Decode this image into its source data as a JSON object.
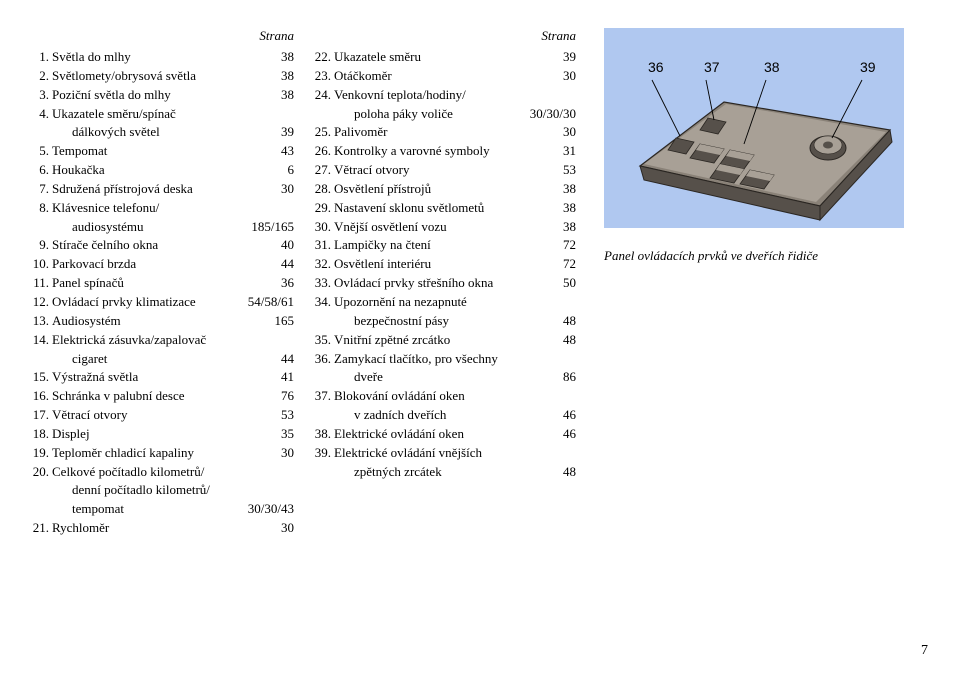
{
  "header": {
    "page_label": "Strana"
  },
  "col1": [
    {
      "n": "1.",
      "label": "Světla do mlhy",
      "val": "38"
    },
    {
      "n": "2.",
      "label": "Světlomety/obrysová světla",
      "val": "38"
    },
    {
      "n": "3.",
      "label": "Poziční světla do mlhy",
      "val": "38"
    },
    {
      "n": "4.",
      "label": "Ukazatele směru/spínač",
      "val": ""
    },
    {
      "n": "",
      "label": "dálkových světel",
      "indent": true,
      "val": "39"
    },
    {
      "n": "5.",
      "label": "Tempomat",
      "val": "43"
    },
    {
      "n": "6.",
      "label": "Houkačka",
      "val": "6"
    },
    {
      "n": "7.",
      "label": "Sdružená přístrojová deska",
      "val": "30"
    },
    {
      "n": "8.",
      "label": "Klávesnice telefonu/",
      "val": ""
    },
    {
      "n": "",
      "label": "audiosystému",
      "indent": true,
      "val": "185/165"
    },
    {
      "n": "9.",
      "label": "Stírače čelního okna",
      "val": "40"
    },
    {
      "n": "10.",
      "label": "Parkovací brzda",
      "val": "44"
    },
    {
      "n": "11.",
      "label": "Panel spínačů",
      "val": "36"
    },
    {
      "n": "12.",
      "label": "Ovládací prvky klimatizace",
      "val": "54/58/61"
    },
    {
      "n": "13.",
      "label": "Audiosystém",
      "val": "165"
    },
    {
      "n": "14.",
      "label": "Elektrická zásuvka/zapalovač",
      "val": ""
    },
    {
      "n": "",
      "label": "cigaret",
      "indent": true,
      "val": "44"
    },
    {
      "n": "15.",
      "label": "Výstražná světla",
      "val": "41"
    },
    {
      "n": "16.",
      "label": "Schránka v palubní desce",
      "val": "76"
    },
    {
      "n": "17.",
      "label": "Větrací otvory",
      "val": "53"
    },
    {
      "n": "18.",
      "label": "Displej",
      "val": "35"
    },
    {
      "n": "19.",
      "label": "Teploměr chladicí kapaliny",
      "val": "30"
    },
    {
      "n": "20.",
      "label": "Celkové počítadlo kilometrů/",
      "val": ""
    },
    {
      "n": "",
      "label": "denní počítadlo kilometrů/",
      "indent": true,
      "val": ""
    },
    {
      "n": "",
      "label": "tempomat",
      "indent": true,
      "val": "30/30/43"
    },
    {
      "n": "21.",
      "label": "Rychloměr",
      "val": "30"
    }
  ],
  "col2": [
    {
      "n": "22.",
      "label": "Ukazatele směru",
      "val": "39"
    },
    {
      "n": "23.",
      "label": "Otáčkoměr",
      "val": "30"
    },
    {
      "n": "24.",
      "label": "Venkovní teplota/hodiny/",
      "val": ""
    },
    {
      "n": "",
      "label": "poloha páky voliče",
      "indent": true,
      "val": "30/30/30"
    },
    {
      "n": "25.",
      "label": "Palivoměr",
      "val": "30"
    },
    {
      "n": "26.",
      "label": "Kontrolky a varovné symboly",
      "val": "31"
    },
    {
      "n": "27.",
      "label": "Větrací otvory",
      "val": "53"
    },
    {
      "n": "28.",
      "label": "Osvětlení přístrojů",
      "val": "38"
    },
    {
      "n": "29.",
      "label": "Nastavení sklonu světlometů",
      "val": "38"
    },
    {
      "n": "30.",
      "label": "Vnější osvětlení vozu",
      "val": "38"
    },
    {
      "n": "31.",
      "label": "Lampičky na čtení",
      "val": "72"
    },
    {
      "n": "32.",
      "label": "Osvětlení interiéru",
      "val": "72"
    },
    {
      "n": "33.",
      "label": "Ovládací prvky střešního okna",
      "val": "50"
    },
    {
      "n": "34.",
      "label": "Upozornění na nezapnuté",
      "val": ""
    },
    {
      "n": "",
      "label": "bezpečnostní pásy",
      "indent": true,
      "val": "48"
    },
    {
      "n": "35.",
      "label": "Vnitřní zpětné zrcátko",
      "val": "48"
    },
    {
      "n": "36.",
      "label": "Zamykací tlačítko, pro všechny",
      "val": ""
    },
    {
      "n": "",
      "label": "dveře",
      "indent": true,
      "val": "86"
    },
    {
      "n": "37.",
      "label": "Blokování ovládání oken",
      "val": ""
    },
    {
      "n": "",
      "label": "v zadních dveřích",
      "indent": true,
      "val": "46"
    },
    {
      "n": "38.",
      "label": "Elektrické ovládání oken",
      "val": "46"
    },
    {
      "n": "39.",
      "label": "Elektrické ovládání vnějších",
      "val": ""
    },
    {
      "n": "",
      "label": "zpětných zrcátek",
      "indent": true,
      "val": "48"
    }
  ],
  "figure": {
    "callouts": [
      "36",
      "37",
      "38",
      "39"
    ],
    "caption": "Panel ovládacích prvků ve dveřích řidiče",
    "colors": {
      "bg": "#b0c8f0",
      "panel_light": "#a8a096",
      "panel_mid": "#8a8278",
      "panel_dark": "#56504a",
      "stroke": "#2a2622",
      "callout": "#000000"
    }
  },
  "page_number": "7"
}
